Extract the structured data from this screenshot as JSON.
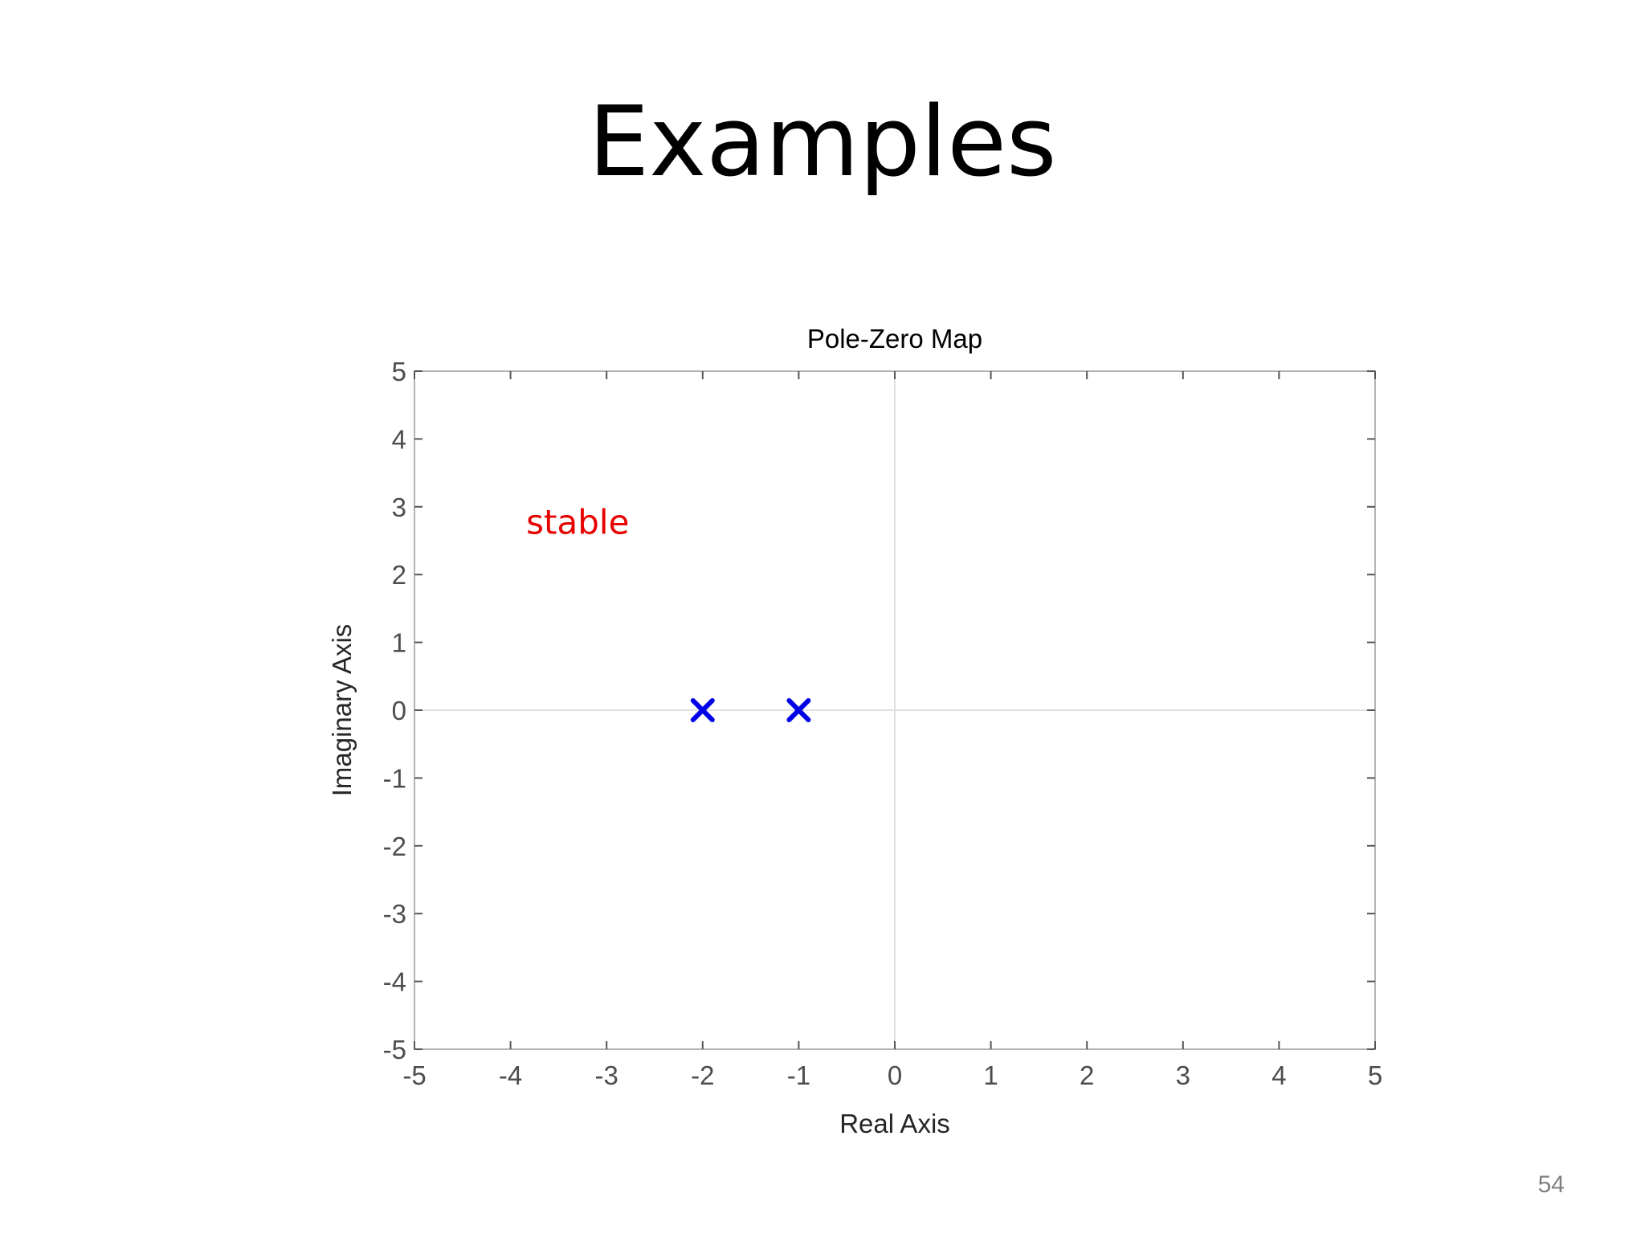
{
  "slide": {
    "title": "Examples",
    "page_number": "54"
  },
  "chart_data": {
    "type": "scatter",
    "title": "Pole-Zero Map",
    "xlabel": "Real Axis",
    "ylabel": "Imaginary Axis",
    "xlim": [
      -5,
      5
    ],
    "ylim": [
      -5,
      5
    ],
    "x_ticks": [
      -5,
      -4,
      -3,
      -2,
      -1,
      0,
      1,
      2,
      3,
      4,
      5
    ],
    "y_ticks": [
      -5,
      -4,
      -3,
      -2,
      -1,
      0,
      1,
      2,
      3,
      4,
      5
    ],
    "grid": false,
    "reference_lines": {
      "x": 0,
      "y": 0
    },
    "series": [
      {
        "marker": "x",
        "color": "#0000e6",
        "points": [
          {
            "x": -2,
            "y": 0
          },
          {
            "x": -1,
            "y": 0
          }
        ]
      }
    ],
    "annotations": [
      {
        "text": "stable",
        "x": -3.3,
        "y": 2.6,
        "color": "#e60000"
      }
    ]
  }
}
